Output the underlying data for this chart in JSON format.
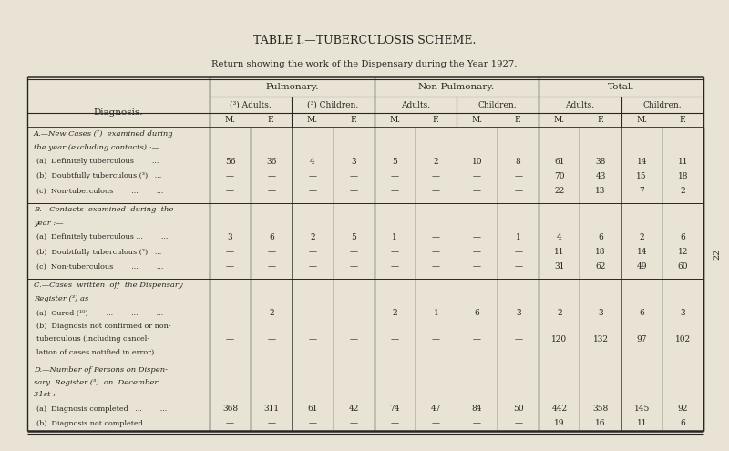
{
  "title": "TABLE I.—TUBERCULOSIS SCHEME.",
  "subtitle": "Return showing the work of the Dispensary during the Year 1927.",
  "bg_color": "#e8e3d5",
  "text_color": "#2a2520",
  "header_groups": [
    "Pulmonary.",
    "Non-Pulmonary.",
    "Total."
  ],
  "sub_headers": [
    [
      "(³) Adults.",
      "(³) Children."
    ],
    [
      "Adults.",
      "Children."
    ],
    [
      "Adults.",
      "Children."
    ]
  ],
  "mf_headers": [
    "M.",
    "F.",
    "M.",
    "F.",
    "M.",
    "F.",
    "M.",
    "F.",
    "M.",
    "F.",
    "M.",
    "F."
  ],
  "sections": [
    {
      "label_lines": [
        "A.—New Cases (⁷)  examined during",
        "the year (excluding contacts) :—"
      ],
      "label_italic": true,
      "rows": [
        {
          "label_lines": [
            "(a)  Definitely tuberculous        ..."
          ],
          "label_indent": true,
          "values": [
            "56",
            "36",
            "4",
            "3",
            "5",
            "2",
            "10",
            "8",
            "61",
            "38",
            "14",
            "11"
          ]
        },
        {
          "label_lines": [
            "(b)  Doubtfully tuberculous (³)   ..."
          ],
          "label_indent": true,
          "values": [
            "—",
            "—",
            "—",
            "—",
            "—",
            "—",
            "—",
            "—",
            "70",
            "43",
            "15",
            "18"
          ]
        },
        {
          "label_lines": [
            "(c)  Non-tuberculous        ...        ..."
          ],
          "label_indent": true,
          "values": [
            "—",
            "—",
            "—",
            "—",
            "—",
            "—",
            "—",
            "—",
            "22",
            "13",
            "7",
            "2"
          ]
        }
      ]
    },
    {
      "label_lines": [
        "B.—Contacts  examined  during  the",
        "year :—"
      ],
      "label_italic": true,
      "rows": [
        {
          "label_lines": [
            "(a)  Definitely tuberculous ...        ..."
          ],
          "label_indent": true,
          "values": [
            "3",
            "6",
            "2",
            "5",
            "1",
            "—",
            "—",
            "1",
            "4",
            "6",
            "2",
            "6"
          ]
        },
        {
          "label_lines": [
            "(b)  Doubtfully tuberculous (³)   ..."
          ],
          "label_indent": true,
          "values": [
            "—",
            "—",
            "—",
            "—",
            "—",
            "—",
            "—",
            "—",
            "11",
            "18",
            "14",
            "12"
          ]
        },
        {
          "label_lines": [
            "(c)  Non-tuberculous        ...        ..."
          ],
          "label_indent": true,
          "values": [
            "—",
            "—",
            "—",
            "—",
            "—",
            "—",
            "—",
            "—",
            "31",
            "62",
            "49",
            "60"
          ]
        }
      ]
    },
    {
      "label_lines": [
        "C.—Cases  written  off  the Dispensary",
        "Register (³) as"
      ],
      "label_italic": true,
      "rows": [
        {
          "label_lines": [
            "(a)  Cured (¹⁰)        ...        ...        ..."
          ],
          "label_indent": true,
          "values": [
            "—",
            "2",
            "—",
            "—",
            "2",
            "1",
            "6",
            "3",
            "2",
            "3",
            "6",
            "3"
          ]
        },
        {
          "label_lines": [
            "(b)  Diagnosis not confirmed or non-",
            "tuberculous (including cancel-",
            "lation of cases notified in error)"
          ],
          "label_indent": true,
          "values": [
            "—",
            "—",
            "—",
            "—",
            "—",
            "—",
            "—",
            "—",
            "120",
            "132",
            "97",
            "102"
          ]
        }
      ]
    },
    {
      "label_lines": [
        "D.—Number of Persons on Dispen-",
        "sary  Register (³)  on  December",
        "31st :—"
      ],
      "label_italic": true,
      "rows": [
        {
          "label_lines": [
            "(a)  Diagnosis completed   ...        ..."
          ],
          "label_indent": true,
          "values": [
            "368",
            "311",
            "61",
            "42",
            "74",
            "47",
            "84",
            "50",
            "442",
            "358",
            "145",
            "92"
          ]
        },
        {
          "label_lines": [
            "(b)  Diagnosis not completed        ..."
          ],
          "label_indent": true,
          "values": [
            "—",
            "—",
            "—",
            "—",
            "—",
            "—",
            "—",
            "—",
            "19",
            "16",
            "11",
            "6"
          ]
        }
      ]
    }
  ],
  "page_number": "22"
}
